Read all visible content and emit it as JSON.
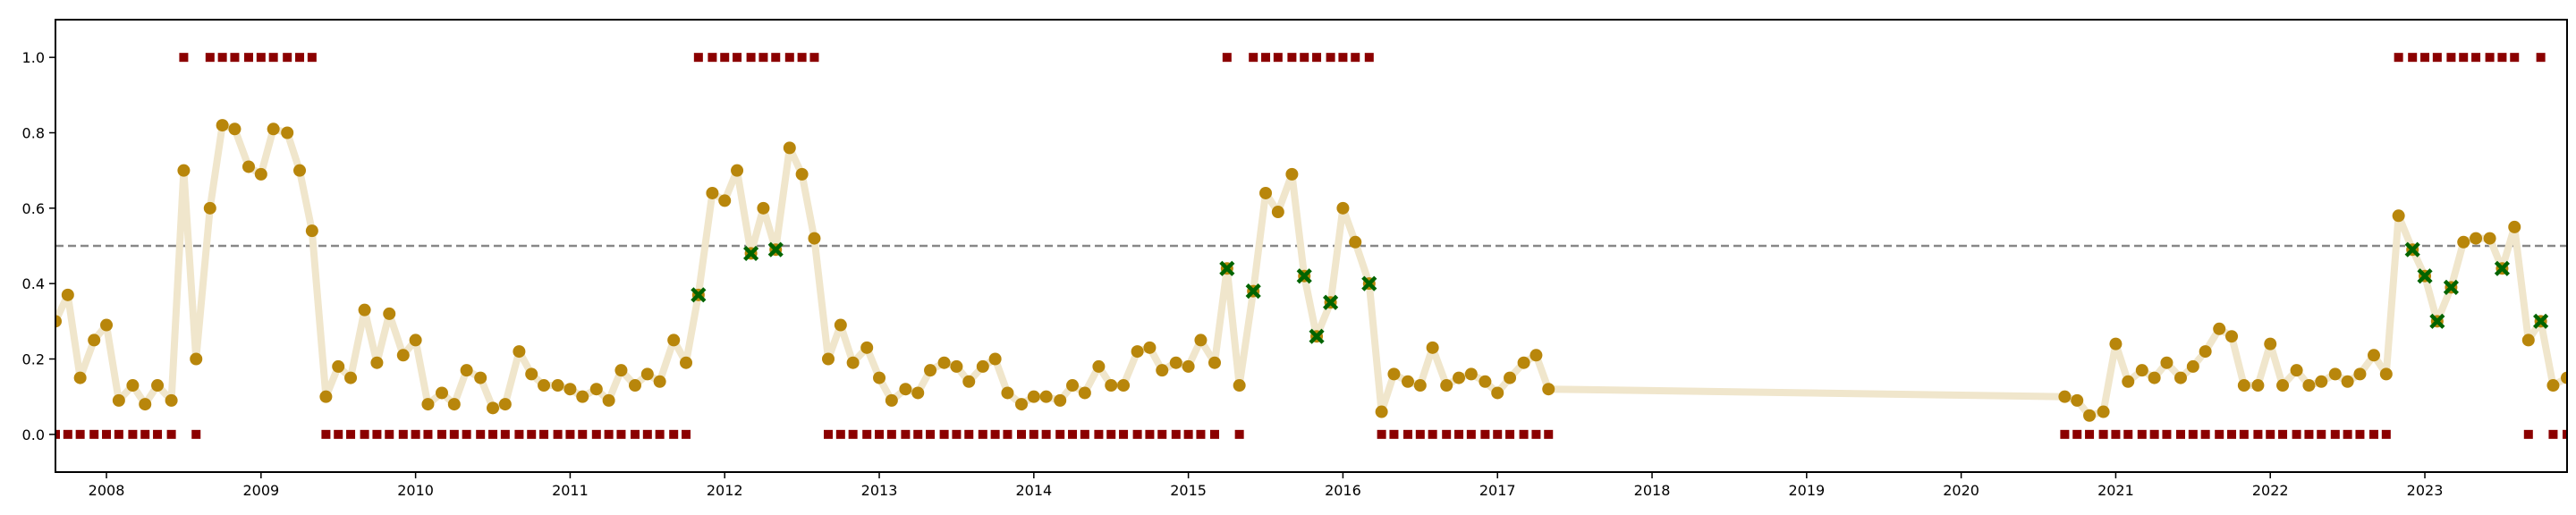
{
  "chart_data": {
    "type": "scatter",
    "title": "",
    "xlabel": "",
    "ylabel": "",
    "xlim": [
      2007.67,
      2023.92
    ],
    "ylim": [
      -0.1,
      1.1
    ],
    "grid": false,
    "legend": "none",
    "threshold": 0.5,
    "x_ticks": [
      {
        "value": 2008,
        "label": "2008"
      },
      {
        "value": 2009,
        "label": "2009"
      },
      {
        "value": 2010,
        "label": "2010"
      },
      {
        "value": 2011,
        "label": "2011"
      },
      {
        "value": 2012,
        "label": "2012"
      },
      {
        "value": 2013,
        "label": "2013"
      },
      {
        "value": 2014,
        "label": "2014"
      },
      {
        "value": 2015,
        "label": "2015"
      },
      {
        "value": 2016,
        "label": "2016"
      },
      {
        "value": 2017,
        "label": "2017"
      },
      {
        "value": 2018,
        "label": "2018"
      },
      {
        "value": 2019,
        "label": "2019"
      },
      {
        "value": 2020,
        "label": "2020"
      },
      {
        "value": 2021,
        "label": "2021"
      },
      {
        "value": 2022,
        "label": "2022"
      },
      {
        "value": 2023,
        "label": "2023"
      }
    ],
    "y_ticks": [
      {
        "value": 0.0,
        "label": "0.0"
      },
      {
        "value": 0.2,
        "label": "0.2"
      },
      {
        "value": 0.4,
        "label": "0.4"
      },
      {
        "value": 0.6,
        "label": "0.6"
      },
      {
        "value": 0.8,
        "label": "0.8"
      },
      {
        "value": 1.0,
        "label": "1.0"
      }
    ],
    "colors": {
      "line": "#f0e6cc",
      "point": "#b8860b",
      "cross": "#006400",
      "label": "#8b0000",
      "threshold": "#888888"
    },
    "probability": [
      [
        2007.67,
        0.3
      ],
      [
        2007.75,
        0.37
      ],
      [
        2007.83,
        0.15
      ],
      [
        2007.92,
        0.25
      ],
      [
        2008.0,
        0.29
      ],
      [
        2008.08,
        0.09
      ],
      [
        2008.17,
        0.13
      ],
      [
        2008.25,
        0.08
      ],
      [
        2008.33,
        0.13
      ],
      [
        2008.42,
        0.09
      ],
      [
        2008.5,
        0.7
      ],
      [
        2008.58,
        0.2
      ],
      [
        2008.67,
        0.6
      ],
      [
        2008.75,
        0.82
      ],
      [
        2008.83,
        0.81
      ],
      [
        2008.92,
        0.71
      ],
      [
        2009.0,
        0.69
      ],
      [
        2009.08,
        0.81
      ],
      [
        2009.17,
        0.8
      ],
      [
        2009.25,
        0.7
      ],
      [
        2009.33,
        0.54
      ],
      [
        2009.42,
        0.1
      ],
      [
        2009.5,
        0.18
      ],
      [
        2009.58,
        0.15
      ],
      [
        2009.67,
        0.33
      ],
      [
        2009.75,
        0.19
      ],
      [
        2009.83,
        0.32
      ],
      [
        2009.92,
        0.21
      ],
      [
        2010.0,
        0.25
      ],
      [
        2010.08,
        0.08
      ],
      [
        2010.17,
        0.11
      ],
      [
        2010.25,
        0.08
      ],
      [
        2010.33,
        0.17
      ],
      [
        2010.42,
        0.15
      ],
      [
        2010.5,
        0.07
      ],
      [
        2010.58,
        0.08
      ],
      [
        2010.67,
        0.22
      ],
      [
        2010.75,
        0.16
      ],
      [
        2010.83,
        0.13
      ],
      [
        2010.92,
        0.13
      ],
      [
        2011.0,
        0.12
      ],
      [
        2011.08,
        0.1
      ],
      [
        2011.17,
        0.12
      ],
      [
        2011.25,
        0.09
      ],
      [
        2011.33,
        0.17
      ],
      [
        2011.42,
        0.13
      ],
      [
        2011.5,
        0.16
      ],
      [
        2011.58,
        0.14
      ],
      [
        2011.67,
        0.25
      ],
      [
        2011.75,
        0.19
      ],
      [
        2011.83,
        0.37
      ],
      [
        2011.92,
        0.64
      ],
      [
        2012.0,
        0.62
      ],
      [
        2012.08,
        0.7
      ],
      [
        2012.17,
        0.48
      ],
      [
        2012.25,
        0.6
      ],
      [
        2012.33,
        0.49
      ],
      [
        2012.42,
        0.76
      ],
      [
        2012.5,
        0.69
      ],
      [
        2012.58,
        0.52
      ],
      [
        2012.67,
        0.2
      ],
      [
        2012.75,
        0.29
      ],
      [
        2012.83,
        0.19
      ],
      [
        2012.92,
        0.23
      ],
      [
        2013.0,
        0.15
      ],
      [
        2013.08,
        0.09
      ],
      [
        2013.17,
        0.12
      ],
      [
        2013.25,
        0.11
      ],
      [
        2013.33,
        0.17
      ],
      [
        2013.42,
        0.19
      ],
      [
        2013.5,
        0.18
      ],
      [
        2013.58,
        0.14
      ],
      [
        2013.67,
        0.18
      ],
      [
        2013.75,
        0.2
      ],
      [
        2013.83,
        0.11
      ],
      [
        2013.92,
        0.08
      ],
      [
        2014.0,
        0.1
      ],
      [
        2014.08,
        0.1
      ],
      [
        2014.17,
        0.09
      ],
      [
        2014.25,
        0.13
      ],
      [
        2014.33,
        0.11
      ],
      [
        2014.42,
        0.18
      ],
      [
        2014.5,
        0.13
      ],
      [
        2014.58,
        0.13
      ],
      [
        2014.67,
        0.22
      ],
      [
        2014.75,
        0.23
      ],
      [
        2014.83,
        0.17
      ],
      [
        2014.92,
        0.19
      ],
      [
        2015.0,
        0.18
      ],
      [
        2015.08,
        0.25
      ],
      [
        2015.17,
        0.19
      ],
      [
        2015.25,
        0.44
      ],
      [
        2015.33,
        0.13
      ],
      [
        2015.42,
        0.38
      ],
      [
        2015.5,
        0.64
      ],
      [
        2015.58,
        0.59
      ],
      [
        2015.67,
        0.69
      ],
      [
        2015.75,
        0.42
      ],
      [
        2015.83,
        0.26
      ],
      [
        2015.92,
        0.35
      ],
      [
        2016.0,
        0.6
      ],
      [
        2016.08,
        0.51
      ],
      [
        2016.17,
        0.4
      ],
      [
        2016.25,
        0.06
      ],
      [
        2016.33,
        0.16
      ],
      [
        2016.42,
        0.14
      ],
      [
        2016.5,
        0.13
      ],
      [
        2016.58,
        0.23
      ],
      [
        2016.67,
        0.13
      ],
      [
        2016.75,
        0.15
      ],
      [
        2016.83,
        0.16
      ],
      [
        2016.92,
        0.14
      ],
      [
        2017.0,
        0.11
      ],
      [
        2017.08,
        0.15
      ],
      [
        2017.17,
        0.19
      ],
      [
        2017.25,
        0.21
      ],
      [
        2017.33,
        0.12
      ],
      [
        2020.67,
        0.1
      ],
      [
        2020.75,
        0.09
      ],
      [
        2020.83,
        0.05
      ],
      [
        2020.92,
        0.06
      ],
      [
        2021.0,
        0.24
      ],
      [
        2021.08,
        0.14
      ],
      [
        2021.17,
        0.17
      ],
      [
        2021.25,
        0.15
      ],
      [
        2021.33,
        0.19
      ],
      [
        2021.42,
        0.15
      ],
      [
        2021.5,
        0.18
      ],
      [
        2021.58,
        0.22
      ],
      [
        2021.67,
        0.28
      ],
      [
        2021.75,
        0.26
      ],
      [
        2021.83,
        0.13
      ],
      [
        2021.92,
        0.13
      ],
      [
        2022.0,
        0.24
      ],
      [
        2022.08,
        0.13
      ],
      [
        2022.17,
        0.17
      ],
      [
        2022.25,
        0.13
      ],
      [
        2022.33,
        0.14
      ],
      [
        2022.42,
        0.16
      ],
      [
        2022.5,
        0.14
      ],
      [
        2022.58,
        0.16
      ],
      [
        2022.67,
        0.21
      ],
      [
        2022.75,
        0.16
      ],
      [
        2022.83,
        0.58
      ],
      [
        2022.92,
        0.49
      ],
      [
        2023.0,
        0.42
      ],
      [
        2023.08,
        0.3
      ],
      [
        2023.17,
        0.39
      ],
      [
        2023.25,
        0.51
      ],
      [
        2023.33,
        0.52
      ],
      [
        2023.42,
        0.52
      ],
      [
        2023.5,
        0.44
      ],
      [
        2023.58,
        0.55
      ],
      [
        2023.67,
        0.25
      ],
      [
        2023.75,
        0.3
      ],
      [
        2023.83,
        0.13
      ],
      [
        2023.92,
        0.15
      ]
    ],
    "crosses": [
      [
        2011.83,
        0.37
      ],
      [
        2012.17,
        0.48
      ],
      [
        2012.33,
        0.49
      ],
      [
        2015.25,
        0.44
      ],
      [
        2015.42,
        0.38
      ],
      [
        2015.75,
        0.42
      ],
      [
        2015.83,
        0.26
      ],
      [
        2015.92,
        0.35
      ],
      [
        2016.17,
        0.4
      ],
      [
        2022.92,
        0.49
      ],
      [
        2023.0,
        0.42
      ],
      [
        2023.08,
        0.3
      ],
      [
        2023.17,
        0.39
      ],
      [
        2023.5,
        0.44
      ],
      [
        2023.75,
        0.3
      ]
    ],
    "labels": [
      [
        2007.67,
        0
      ],
      [
        2007.75,
        0
      ],
      [
        2007.83,
        0
      ],
      [
        2007.92,
        0
      ],
      [
        2008.0,
        0
      ],
      [
        2008.08,
        0
      ],
      [
        2008.17,
        0
      ],
      [
        2008.25,
        0
      ],
      [
        2008.33,
        0
      ],
      [
        2008.42,
        0
      ],
      [
        2008.5,
        1
      ],
      [
        2008.58,
        0
      ],
      [
        2008.67,
        1
      ],
      [
        2008.75,
        1
      ],
      [
        2008.83,
        1
      ],
      [
        2008.92,
        1
      ],
      [
        2009.0,
        1
      ],
      [
        2009.08,
        1
      ],
      [
        2009.17,
        1
      ],
      [
        2009.25,
        1
      ],
      [
        2009.33,
        1
      ],
      [
        2009.42,
        0
      ],
      [
        2009.5,
        0
      ],
      [
        2009.58,
        0
      ],
      [
        2009.67,
        0
      ],
      [
        2009.75,
        0
      ],
      [
        2009.83,
        0
      ],
      [
        2009.92,
        0
      ],
      [
        2010.0,
        0
      ],
      [
        2010.08,
        0
      ],
      [
        2010.17,
        0
      ],
      [
        2010.25,
        0
      ],
      [
        2010.33,
        0
      ],
      [
        2010.42,
        0
      ],
      [
        2010.5,
        0
      ],
      [
        2010.58,
        0
      ],
      [
        2010.67,
        0
      ],
      [
        2010.75,
        0
      ],
      [
        2010.83,
        0
      ],
      [
        2010.92,
        0
      ],
      [
        2011.0,
        0
      ],
      [
        2011.08,
        0
      ],
      [
        2011.17,
        0
      ],
      [
        2011.25,
        0
      ],
      [
        2011.33,
        0
      ],
      [
        2011.42,
        0
      ],
      [
        2011.5,
        0
      ],
      [
        2011.58,
        0
      ],
      [
        2011.67,
        0
      ],
      [
        2011.75,
        0
      ],
      [
        2011.83,
        1
      ],
      [
        2011.92,
        1
      ],
      [
        2012.0,
        1
      ],
      [
        2012.08,
        1
      ],
      [
        2012.17,
        1
      ],
      [
        2012.25,
        1
      ],
      [
        2012.33,
        1
      ],
      [
        2012.42,
        1
      ],
      [
        2012.5,
        1
      ],
      [
        2012.58,
        1
      ],
      [
        2012.67,
        0
      ],
      [
        2012.75,
        0
      ],
      [
        2012.83,
        0
      ],
      [
        2012.92,
        0
      ],
      [
        2013.0,
        0
      ],
      [
        2013.08,
        0
      ],
      [
        2013.17,
        0
      ],
      [
        2013.25,
        0
      ],
      [
        2013.33,
        0
      ],
      [
        2013.42,
        0
      ],
      [
        2013.5,
        0
      ],
      [
        2013.58,
        0
      ],
      [
        2013.67,
        0
      ],
      [
        2013.75,
        0
      ],
      [
        2013.83,
        0
      ],
      [
        2013.92,
        0
      ],
      [
        2014.0,
        0
      ],
      [
        2014.08,
        0
      ],
      [
        2014.17,
        0
      ],
      [
        2014.25,
        0
      ],
      [
        2014.33,
        0
      ],
      [
        2014.42,
        0
      ],
      [
        2014.5,
        0
      ],
      [
        2014.58,
        0
      ],
      [
        2014.67,
        0
      ],
      [
        2014.75,
        0
      ],
      [
        2014.83,
        0
      ],
      [
        2014.92,
        0
      ],
      [
        2015.0,
        0
      ],
      [
        2015.08,
        0
      ],
      [
        2015.17,
        0
      ],
      [
        2015.25,
        1
      ],
      [
        2015.33,
        0
      ],
      [
        2015.42,
        1
      ],
      [
        2015.5,
        1
      ],
      [
        2015.58,
        1
      ],
      [
        2015.67,
        1
      ],
      [
        2015.75,
        1
      ],
      [
        2015.83,
        1
      ],
      [
        2015.92,
        1
      ],
      [
        2016.0,
        1
      ],
      [
        2016.08,
        1
      ],
      [
        2016.17,
        1
      ],
      [
        2016.25,
        0
      ],
      [
        2016.33,
        0
      ],
      [
        2016.42,
        0
      ],
      [
        2016.5,
        0
      ],
      [
        2016.58,
        0
      ],
      [
        2016.67,
        0
      ],
      [
        2016.75,
        0
      ],
      [
        2016.83,
        0
      ],
      [
        2016.92,
        0
      ],
      [
        2017.0,
        0
      ],
      [
        2017.08,
        0
      ],
      [
        2017.17,
        0
      ],
      [
        2017.25,
        0
      ],
      [
        2017.33,
        0
      ],
      [
        2020.67,
        0
      ],
      [
        2020.75,
        0
      ],
      [
        2020.83,
        0
      ],
      [
        2020.92,
        0
      ],
      [
        2021.0,
        0
      ],
      [
        2021.08,
        0
      ],
      [
        2021.17,
        0
      ],
      [
        2021.25,
        0
      ],
      [
        2021.33,
        0
      ],
      [
        2021.42,
        0
      ],
      [
        2021.5,
        0
      ],
      [
        2021.58,
        0
      ],
      [
        2021.67,
        0
      ],
      [
        2021.75,
        0
      ],
      [
        2021.83,
        0
      ],
      [
        2021.92,
        0
      ],
      [
        2022.0,
        0
      ],
      [
        2022.08,
        0
      ],
      [
        2022.17,
        0
      ],
      [
        2022.25,
        0
      ],
      [
        2022.33,
        0
      ],
      [
        2022.42,
        0
      ],
      [
        2022.5,
        0
      ],
      [
        2022.58,
        0
      ],
      [
        2022.67,
        0
      ],
      [
        2022.75,
        0
      ],
      [
        2022.83,
        1
      ],
      [
        2022.92,
        1
      ],
      [
        2023.0,
        1
      ],
      [
        2023.08,
        1
      ],
      [
        2023.17,
        1
      ],
      [
        2023.25,
        1
      ],
      [
        2023.33,
        1
      ],
      [
        2023.42,
        1
      ],
      [
        2023.5,
        1
      ],
      [
        2023.58,
        1
      ],
      [
        2023.67,
        0
      ],
      [
        2023.75,
        1
      ],
      [
        2023.83,
        0
      ],
      [
        2023.92,
        0
      ]
    ]
  }
}
